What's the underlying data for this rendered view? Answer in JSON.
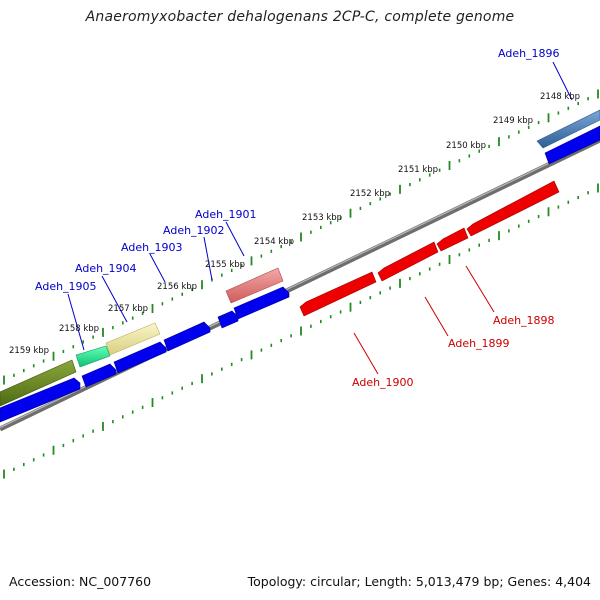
{
  "title": "Anaeromyxobacter dehalogenans 2CP-C, complete genome",
  "footer": {
    "accession": "Accession: NC_007760",
    "summary": "Topology: circular; Length: 5,013,479 bp; Genes: 4,404"
  },
  "ticks": [
    "2148 kbp",
    "2149 kbp",
    "2150 kbp",
    "2151 kbp",
    "2152 kbp",
    "2153 kbp",
    "2154 kbp",
    "2155 kbp",
    "2156 kbp",
    "2157 kbp",
    "2158 kbp",
    "2159 kbp"
  ],
  "colors": {
    "backbone": "#7f7f7f",
    "forward_cds": "#0000ee",
    "reverse_cds": "#ee0000",
    "tick_marks": "#228b22",
    "forward_label": "#0000cc",
    "reverse_label": "#cc0000"
  },
  "genes": [
    {
      "id": "Adeh_1896",
      "strand": "forward",
      "color": "#4a7db3"
    },
    {
      "id": "Adeh_1898",
      "strand": "reverse",
      "color": "#ee0000"
    },
    {
      "id": "Adeh_1899",
      "strand": "reverse",
      "color": "#ee0000"
    },
    {
      "id": "Adeh_1900",
      "strand": "reverse",
      "color": "#ee0000"
    },
    {
      "id": "Adeh_1901",
      "strand": "forward",
      "color": "#e58080"
    },
    {
      "id": "Adeh_1902",
      "strand": "forward",
      "color": "#0000ee"
    },
    {
      "id": "Adeh_1903",
      "strand": "forward",
      "color": "#0000ee"
    },
    {
      "id": "Adeh_1904",
      "strand": "forward",
      "color": "#e8e4a0"
    },
    {
      "id": "Adeh_1905",
      "strand": "forward",
      "color": "#22dd88"
    }
  ]
}
